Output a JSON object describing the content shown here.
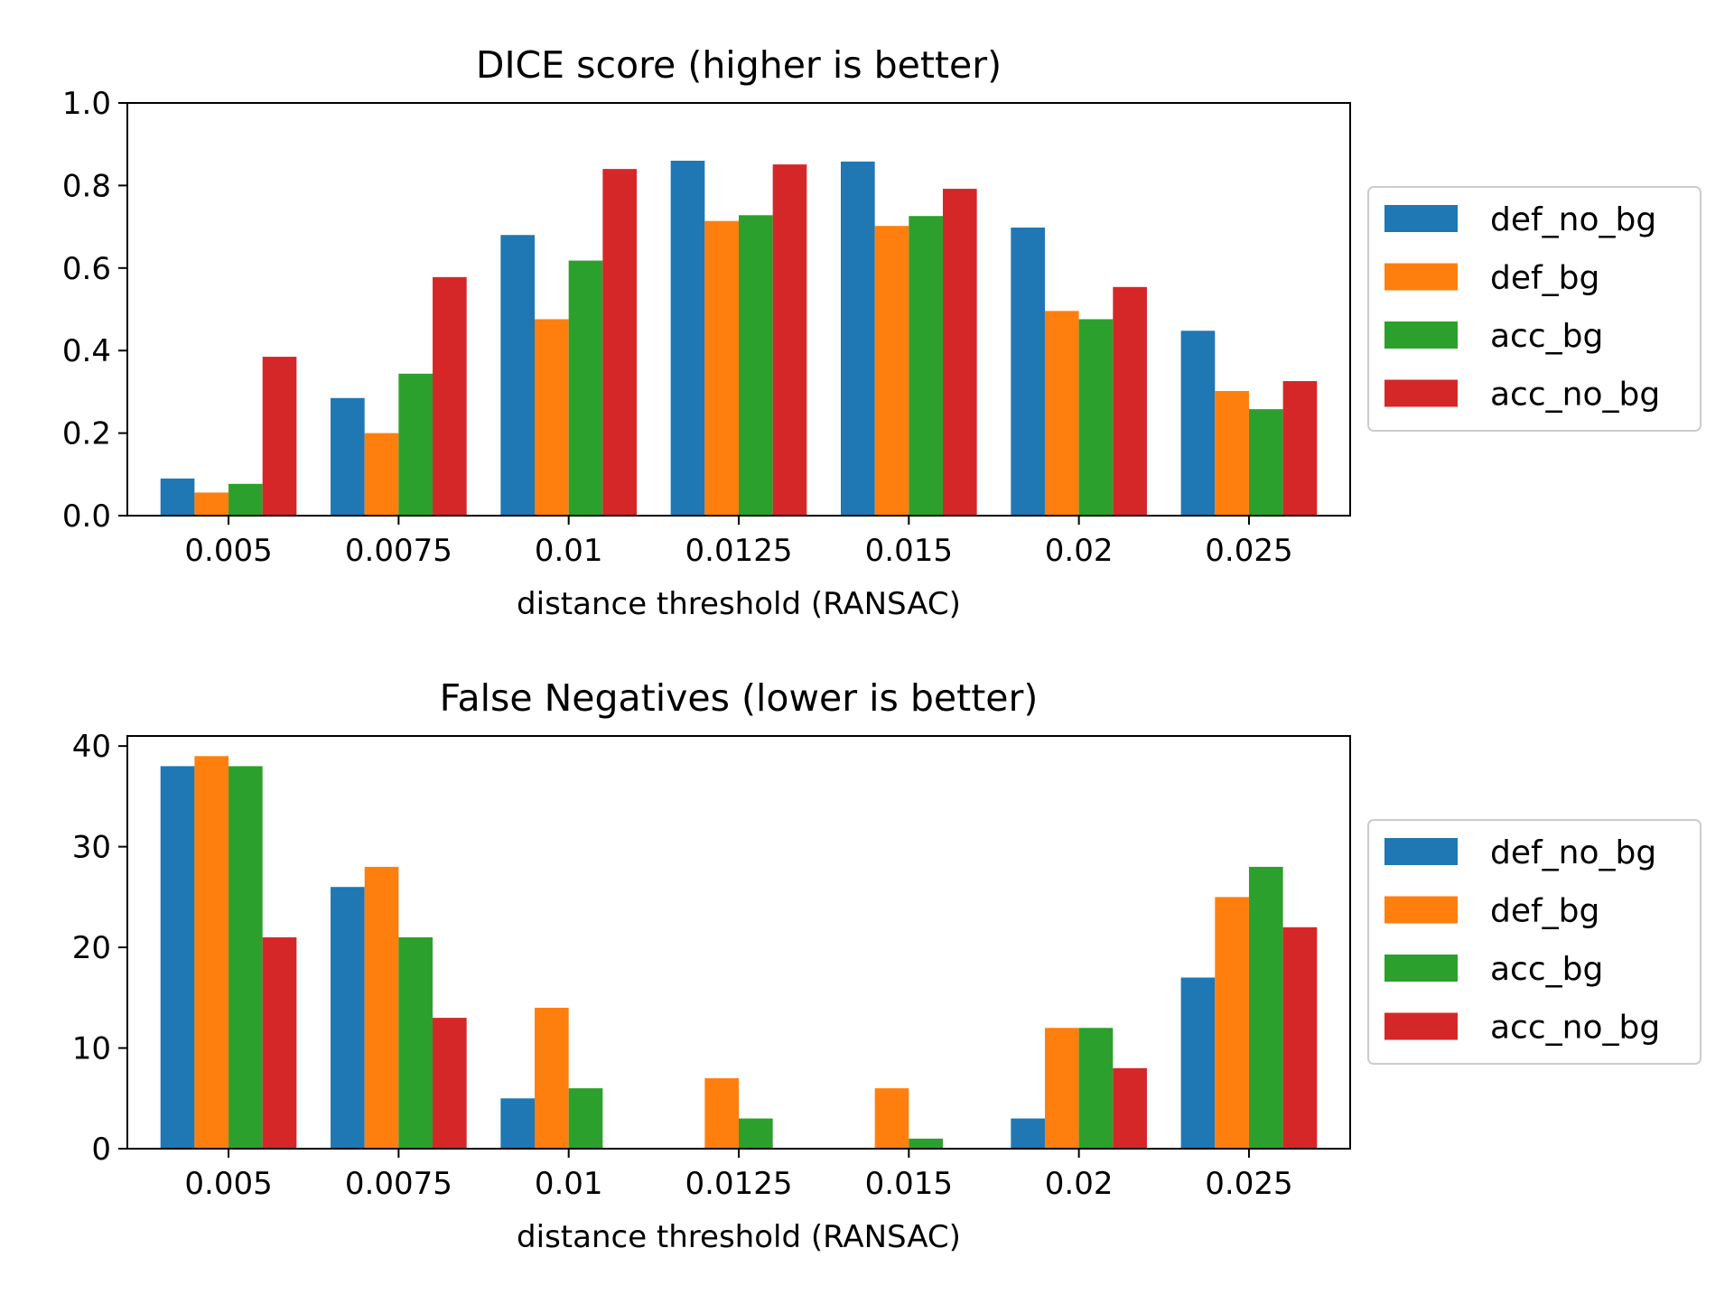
{
  "chart_data": [
    {
      "type": "bar",
      "title": "DICE score (higher is better)",
      "xlabel": "distance threshold (RANSAC)",
      "ylabel": "",
      "categories": [
        "0.005",
        "0.0075",
        "0.01",
        "0.0125",
        "0.015",
        "0.02",
        "0.025"
      ],
      "ylim": [
        0,
        1.0
      ],
      "yticks": [
        "0.0",
        "0.2",
        "0.4",
        "0.6",
        "0.8",
        "1.0"
      ],
      "ytick_values": [
        0,
        0.2,
        0.4,
        0.6,
        0.8,
        1.0
      ],
      "legend": "center-right outside",
      "grid": false,
      "series": [
        {
          "name": "def_no_bg",
          "color": "#1f77b4",
          "values": [
            0.09,
            0.285,
            0.68,
            0.86,
            0.858,
            0.698,
            0.448
          ]
        },
        {
          "name": "def_bg",
          "color": "#ff7f0e",
          "values": [
            0.056,
            0.2,
            0.476,
            0.714,
            0.702,
            0.496,
            0.302
          ]
        },
        {
          "name": "acc_bg",
          "color": "#2ca02c",
          "values": [
            0.077,
            0.344,
            0.618,
            0.728,
            0.726,
            0.476,
            0.258
          ]
        },
        {
          "name": "acc_no_bg",
          "color": "#d62728",
          "values": [
            0.385,
            0.578,
            0.84,
            0.851,
            0.792,
            0.554,
            0.326
          ]
        }
      ]
    },
    {
      "type": "bar",
      "title": "False Negatives (lower is better)",
      "xlabel": "distance threshold (RANSAC)",
      "ylabel": "",
      "categories": [
        "0.005",
        "0.0075",
        "0.01",
        "0.0125",
        "0.015",
        "0.02",
        "0.025"
      ],
      "ylim": [
        0,
        41
      ],
      "yticks": [
        "0",
        "10",
        "20",
        "30",
        "40"
      ],
      "ytick_values": [
        0,
        10,
        20,
        30,
        40
      ],
      "legend": "center-right outside",
      "grid": false,
      "series": [
        {
          "name": "def_no_bg",
          "color": "#1f77b4",
          "values": [
            38,
            26,
            5,
            0,
            0,
            3,
            17
          ]
        },
        {
          "name": "def_bg",
          "color": "#ff7f0e",
          "values": [
            39,
            28,
            14,
            7,
            6,
            12,
            25
          ]
        },
        {
          "name": "acc_bg",
          "color": "#2ca02c",
          "values": [
            38,
            21,
            6,
            3,
            1,
            12,
            28
          ]
        },
        {
          "name": "acc_no_bg",
          "color": "#d62728",
          "values": [
            21,
            13,
            0,
            0,
            0,
            8,
            22
          ]
        }
      ]
    }
  ]
}
